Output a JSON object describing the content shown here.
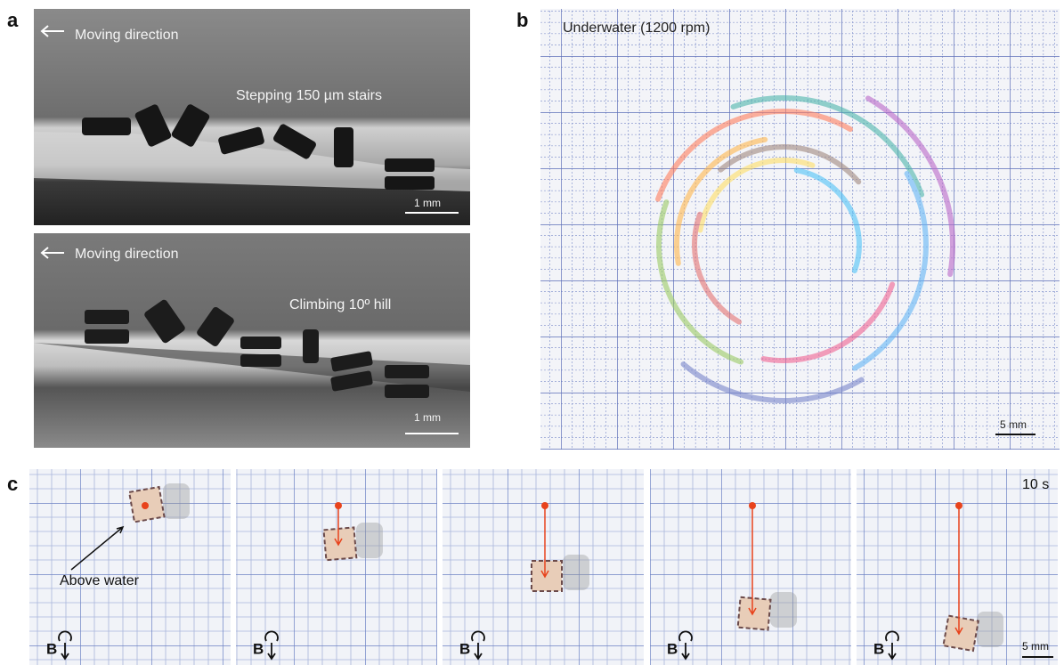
{
  "panels": [
    {
      "label": "a",
      "images": [
        {
          "direction": "Moving direction",
          "caption": "Stepping 150 µm stairs",
          "scale_bar": "1 mm"
        },
        {
          "direction": "Moving direction",
          "caption": "Climbing 10º hill",
          "scale_bar": "1 mm"
        }
      ]
    },
    {
      "label": "b",
      "title": "Underwater (1200 rpm)",
      "scale_bar": "5 mm"
    },
    {
      "label": "c",
      "annotation": "Above water",
      "time": "10 s",
      "scale_bar": "5 mm",
      "frames": [
        {
          "field": "B"
        },
        {
          "field": "B"
        },
        {
          "field": "B"
        },
        {
          "field": "B"
        },
        {
          "field": "B"
        }
      ]
    }
  ]
}
